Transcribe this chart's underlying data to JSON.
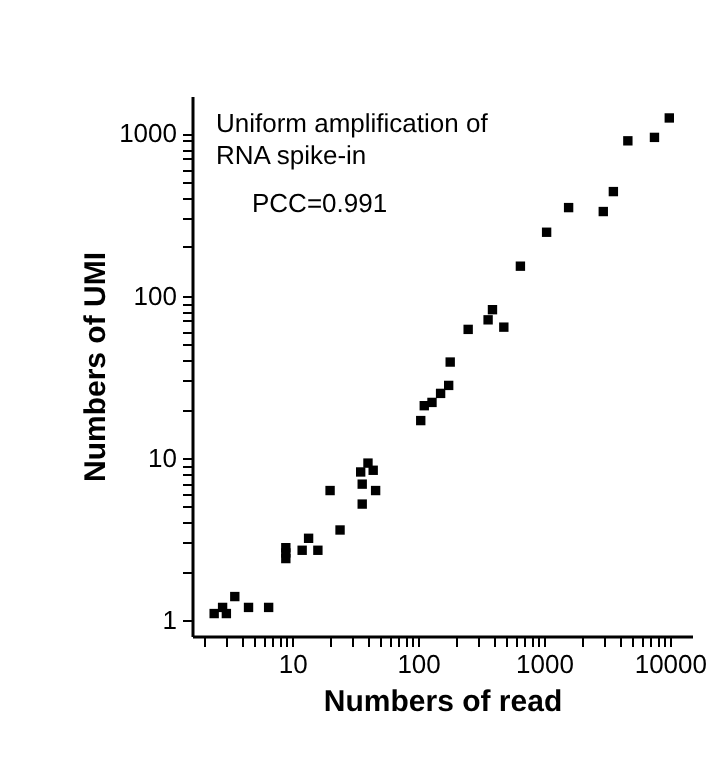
{
  "chart_data": {
    "type": "scatter",
    "xlabel": "Numbers of read",
    "ylabel": "Numbers of UMI",
    "annotations": [
      "Uniform amplification of RNA spike-in",
      "PCC=0.991"
    ],
    "log": "xy",
    "marker": "square",
    "grid": false,
    "x": [
      2.4,
      2.8,
      3.0,
      3.5,
      4.5,
      6.5,
      8.9,
      8.9,
      8.9,
      12,
      13.5,
      16,
      20,
      24,
      35,
      36,
      36,
      40,
      44,
      46,
      105,
      112,
      129,
      151,
      175,
      180,
      250,
      360,
      390,
      480,
      650,
      1050,
      1570,
      2960,
      3560,
      4640,
      7550,
      9900
    ],
    "series": [
      {
        "color": "#000000",
        "values": [
          1.1,
          1.2,
          1.1,
          1.4,
          1.2,
          1.2,
          2.8,
          2.6,
          2.4,
          2.7,
          3.2,
          2.7,
          6.3,
          3.6,
          8.2,
          6.9,
          5.2,
          9.3,
          8.4,
          6.3,
          17,
          21,
          22,
          25,
          28,
          39,
          62,
          71,
          82,
          64,
          152,
          246,
          349,
          330,
          438,
          900,
          945,
          1245
        ]
      }
    ],
    "xlim": [
      1.6,
      15000
    ],
    "ylim": [
      0.8,
      1700
    ],
    "xticks": [
      {
        "value": 2,
        "label": null
      },
      {
        "value": 3,
        "label": null
      },
      {
        "value": 4,
        "label": null
      },
      {
        "value": 5,
        "label": null
      },
      {
        "value": 6,
        "label": null
      },
      {
        "value": 7,
        "label": null
      },
      {
        "value": 8,
        "label": null
      },
      {
        "value": 9,
        "label": null
      },
      10,
      {
        "value": 20,
        "label": null
      },
      {
        "value": 30,
        "label": null
      },
      {
        "value": 40,
        "label": null
      },
      {
        "value": 50,
        "label": null
      },
      {
        "value": 60,
        "label": null
      },
      {
        "value": 70,
        "label": null
      },
      {
        "value": 80,
        "label": null
      },
      {
        "value": 90,
        "label": null
      },
      100,
      {
        "value": 200,
        "label": null
      },
      {
        "value": 300,
        "label": null
      },
      {
        "value": 400,
        "label": null
      },
      {
        "value": 500,
        "label": null
      },
      {
        "value": 600,
        "label": null
      },
      {
        "value": 700,
        "label": null
      },
      {
        "value": 800,
        "label": null
      },
      {
        "value": 900,
        "label": null
      },
      1000,
      {
        "value": 2000,
        "label": null
      },
      {
        "value": 3000,
        "label": null
      },
      {
        "value": 4000,
        "label": null
      },
      {
        "value": 5000,
        "label": null
      },
      {
        "value": 6000,
        "label": null
      },
      {
        "value": 7000,
        "label": null
      },
      {
        "value": 8000,
        "label": null
      },
      {
        "value": 9000,
        "label": null
      },
      10000
    ],
    "yticks": [
      1,
      {
        "value": 2,
        "label": null
      },
      {
        "value": 3,
        "label": null
      },
      {
        "value": 4,
        "label": null
      },
      {
        "value": 5,
        "label": null
      },
      {
        "value": 6,
        "label": null
      },
      {
        "value": 7,
        "label": null
      },
      {
        "value": 8,
        "label": null
      },
      {
        "value": 9,
        "label": null
      },
      10,
      {
        "value": 20,
        "label": null
      },
      {
        "value": 30,
        "label": null
      },
      {
        "value": 40,
        "label": null
      },
      {
        "value": 50,
        "label": null
      },
      {
        "value": 60,
        "label": null
      },
      {
        "value": 70,
        "label": null
      },
      {
        "value": 80,
        "label": null
      },
      {
        "value": 90,
        "label": null
      },
      100,
      {
        "value": 200,
        "label": null
      },
      {
        "value": 300,
        "label": null
      },
      {
        "value": 400,
        "label": null
      },
      {
        "value": 500,
        "label": null
      },
      {
        "value": 600,
        "label": null
      },
      {
        "value": 700,
        "label": null
      },
      {
        "value": 800,
        "label": null
      },
      {
        "value": 900,
        "label": null
      },
      1000
    ]
  }
}
